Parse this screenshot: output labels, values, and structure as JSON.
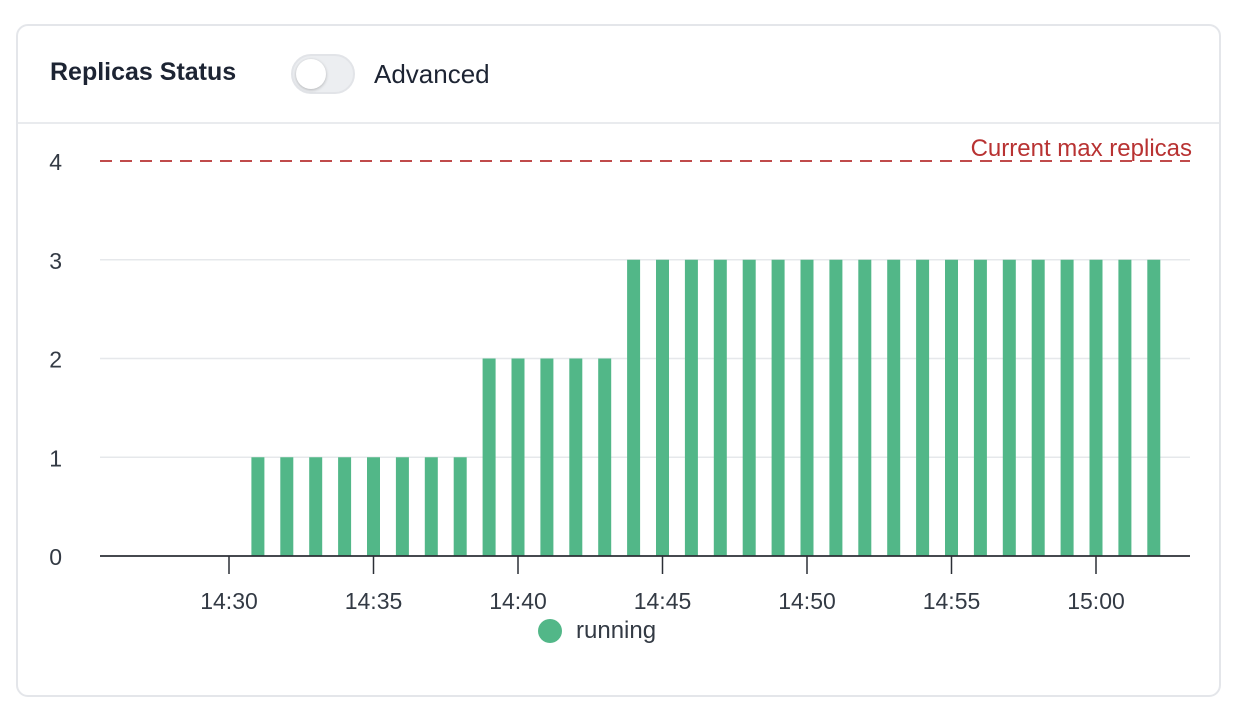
{
  "header": {
    "title": "Replicas Status",
    "toggle_label": "Advanced",
    "toggle_on": false
  },
  "chart_data": {
    "type": "bar",
    "title": "",
    "xlabel": "",
    "ylabel": "",
    "ylim": [
      0,
      4
    ],
    "yticks": [
      "0",
      "1",
      "2",
      "3",
      "4"
    ],
    "x_tick_labels": [
      "14:30",
      "14:35",
      "14:40",
      "14:45",
      "14:50",
      "14:55",
      "15:00"
    ],
    "categories": [
      "14:31",
      "14:32",
      "14:33",
      "14:34",
      "14:35",
      "14:36",
      "14:37",
      "14:38",
      "14:39",
      "14:40",
      "14:41",
      "14:42",
      "14:43",
      "14:44",
      "14:45",
      "14:46",
      "14:47",
      "14:48",
      "14:49",
      "14:50",
      "14:51",
      "14:52",
      "14:53",
      "14:54",
      "14:55",
      "14:56",
      "14:57",
      "14:58",
      "14:59",
      "15:00",
      "15:01",
      "15:02"
    ],
    "series": [
      {
        "name": "running",
        "color": "#52b788",
        "values": [
          1,
          1,
          1,
          1,
          1,
          1,
          1,
          1,
          2,
          2,
          2,
          2,
          2,
          3,
          3,
          3,
          3,
          3,
          3,
          3,
          3,
          3,
          3,
          3,
          3,
          3,
          3,
          3,
          3,
          3,
          3,
          3
        ]
      }
    ],
    "threshold": {
      "value": 4,
      "label": "Current max replicas",
      "color": "#b83232"
    },
    "grid": true,
    "legend_position": "bottom"
  }
}
